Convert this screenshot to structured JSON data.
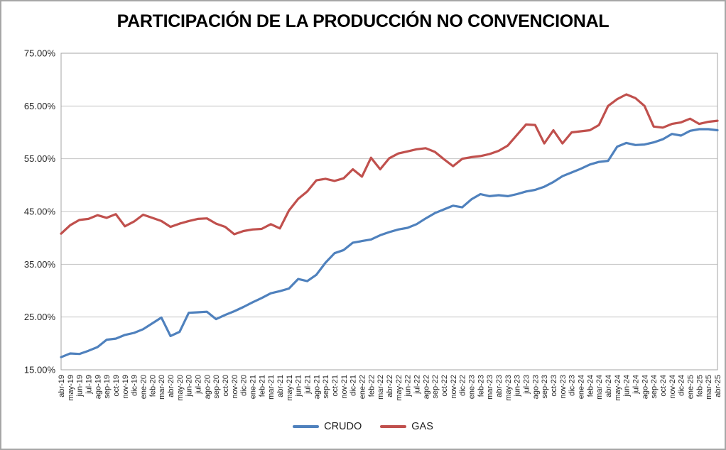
{
  "chart_data": {
    "type": "line",
    "title": "PARTICIPACIÓN DE LA PRODUCCIÓN NO CONVENCIONAL",
    "categories": [
      "abr-19",
      "may-19",
      "jun-19",
      "jul-19",
      "ago-19",
      "sep-19",
      "oct-19",
      "nov-19",
      "dic-19",
      "ene-20",
      "feb-20",
      "mar-20",
      "abr-20",
      "may-20",
      "jun-20",
      "jul-20",
      "ago-20",
      "sep-20",
      "oct-20",
      "nov-20",
      "dic-20",
      "ene-21",
      "feb-21",
      "mar-21",
      "abr-21",
      "may-21",
      "jun-21",
      "jul-21",
      "ago-21",
      "sep-21",
      "oct-21",
      "nov-21",
      "dic-21",
      "ene-22",
      "feb-22",
      "mar-22",
      "abr-22",
      "may-22",
      "jun-22",
      "jul-22",
      "ago-22",
      "sep-22",
      "oct-22",
      "nov-22",
      "dic-22",
      "ene-23",
      "feb-23",
      "mar-23",
      "abr-23",
      "may-23",
      "jun-23",
      "jul-23",
      "ago-23",
      "sep-23",
      "oct-23",
      "nov-23",
      "dic-23",
      "ene-24",
      "feb-24",
      "mar-24",
      "abr-24",
      "may-24",
      "jun-24",
      "jul-24",
      "ago-24",
      "sep-24",
      "oct-24",
      "nov-24",
      "dic-24",
      "ene-25",
      "feb-25",
      "mar-25",
      "abr-25"
    ],
    "series": [
      {
        "name": "CRUDO",
        "color": "#4F81BD",
        "values": [
          17.4,
          18.1,
          18.0,
          18.6,
          19.3,
          20.7,
          20.9,
          21.6,
          22.0,
          22.7,
          23.8,
          24.9,
          21.4,
          22.2,
          25.8,
          25.9,
          26.0,
          24.6,
          25.4,
          26.1,
          26.9,
          27.8,
          28.6,
          29.5,
          29.9,
          30.4,
          32.2,
          31.8,
          33.0,
          35.3,
          37.1,
          37.7,
          39.1,
          39.4,
          39.7,
          40.5,
          41.1,
          41.6,
          41.9,
          42.6,
          43.7,
          44.7,
          45.4,
          46.1,
          45.8,
          47.3,
          48.3,
          47.9,
          48.1,
          47.9,
          48.3,
          48.8,
          49.1,
          49.7,
          50.6,
          51.7,
          52.4,
          53.1,
          53.9,
          54.4,
          54.6,
          57.3,
          58.0,
          57.6,
          57.7,
          58.1,
          58.7,
          59.7,
          59.4,
          60.3,
          60.6,
          60.6,
          60.4
        ]
      },
      {
        "name": "GAS",
        "color": "#C0504D",
        "values": [
          40.8,
          42.4,
          43.4,
          43.6,
          44.3,
          43.8,
          44.5,
          42.2,
          43.1,
          44.4,
          43.8,
          43.2,
          42.1,
          42.7,
          43.2,
          43.6,
          43.7,
          42.7,
          42.1,
          40.7,
          41.3,
          41.6,
          41.7,
          42.6,
          41.8,
          45.2,
          47.4,
          48.8,
          50.9,
          51.2,
          50.8,
          51.3,
          53.0,
          51.6,
          55.2,
          53.0,
          55.1,
          56.0,
          56.4,
          56.8,
          57.0,
          56.3,
          54.9,
          53.6,
          55.0,
          55.3,
          55.5,
          55.9,
          56.5,
          57.5,
          59.5,
          61.5,
          61.4,
          57.9,
          60.4,
          57.9,
          60.0,
          60.2,
          60.4,
          61.4,
          65.0,
          66.3,
          67.2,
          66.5,
          65.0,
          61.1,
          60.9,
          61.6,
          61.9,
          62.6,
          61.6,
          62.0,
          62.2
        ]
      }
    ],
    "yticks": [
      "15.00%",
      "25.00%",
      "35.00%",
      "45.00%",
      "55.00%",
      "65.00%",
      "75.00%"
    ],
    "ylim": [
      15,
      75
    ],
    "grid": true,
    "legend_position": "bottom"
  },
  "legend": {
    "crudo_label": "CRUDO",
    "gas_label": "GAS"
  },
  "colors": {
    "crudo": "#4F81BD",
    "gas": "#C0504D",
    "gridline": "#c3c3c3",
    "plot_border": "#a6a6a6",
    "frame_border": "#a6a6a6",
    "text": "#262626"
  }
}
